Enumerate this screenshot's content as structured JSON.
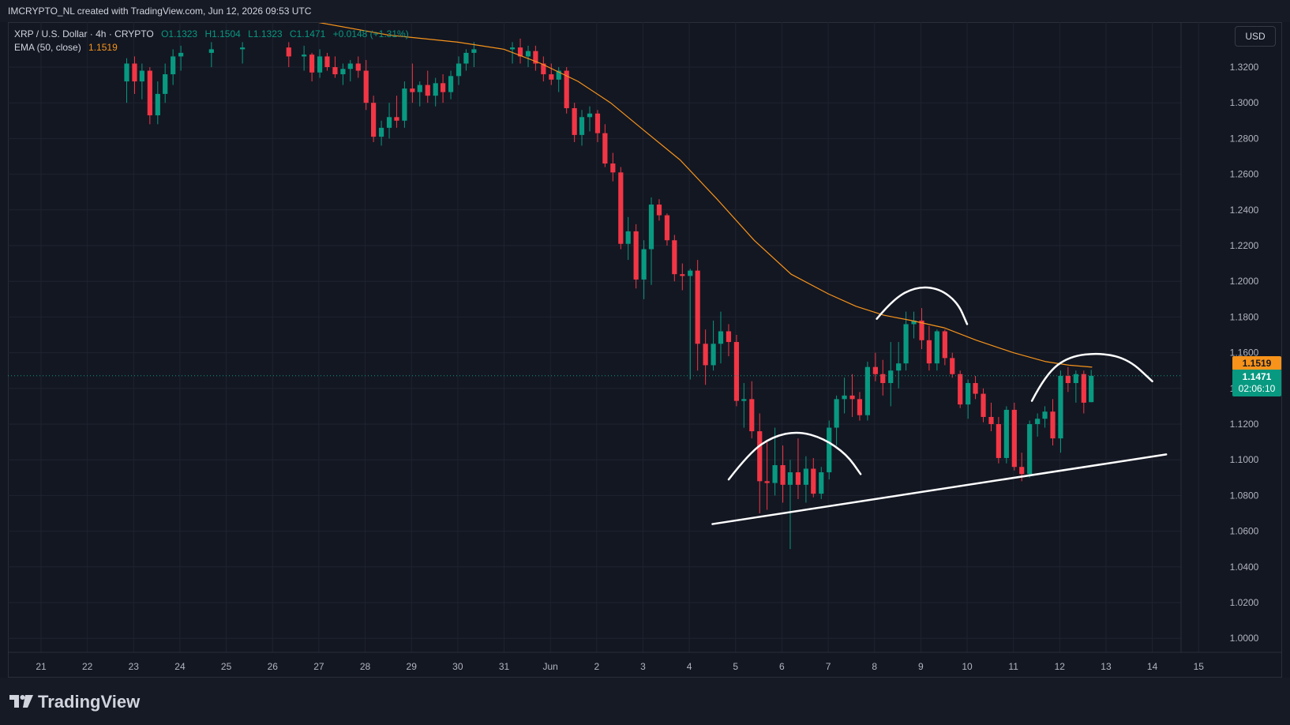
{
  "header": {
    "caption": "IMCRYPTO_NL created with TradingView.com, Jun 12, 2026 09:53 UTC"
  },
  "legend": {
    "symbol": "XRP / U.S. Dollar · 4h · CRYPTO",
    "open": "O1.1323",
    "high": "H1.1504",
    "low": "L1.1323",
    "close": "C1.1471",
    "change": "+0.0148 (+1.31%)",
    "ema_label": "EMA (50, close)",
    "ema_value": "1.1519"
  },
  "currency_button": "USD",
  "price_tags": {
    "ema": "1.1519",
    "last": "1.1471",
    "countdown": "02:06:10"
  },
  "brand": "TradingView",
  "colors": {
    "up": "#089981",
    "down": "#f23645",
    "ema": "#f7931a",
    "grid": "#1f2330",
    "bg": "#131722",
    "annotation": "#ffffff"
  },
  "chart_data": {
    "type": "candlestick",
    "title": "XRP / U.S. Dollar · 4h · CRYPTO",
    "xlabel": "",
    "ylabel": "",
    "ylim": [
      0.99,
      1.325
    ],
    "y_ticks": [
      "1.3200",
      "1.3000",
      "1.2800",
      "1.2600",
      "1.2400",
      "1.2200",
      "1.2000",
      "1.1800",
      "1.1600",
      "1.1400",
      "1.1200",
      "1.1000",
      "1.0800",
      "1.0600",
      "1.0400",
      "1.0200",
      "1.0000"
    ],
    "x_ticks": [
      "21",
      "22",
      "23",
      "24",
      "25",
      "26",
      "27",
      "28",
      "29",
      "30",
      "31",
      "Jun",
      "2",
      "3",
      "4",
      "5",
      "6",
      "7",
      "8",
      "9",
      "10",
      "11",
      "12",
      "13",
      "14",
      "15"
    ],
    "x_tick_positions_days": [
      0,
      1,
      2,
      3,
      4,
      5,
      6,
      7,
      8,
      9,
      10,
      11,
      12,
      13,
      14,
      15,
      16,
      17,
      18,
      19,
      20,
      21,
      22,
      23,
      24,
      25
    ],
    "candles": [
      {
        "t": 1.85,
        "o": 1.312,
        "h": 1.325,
        "l": 1.3,
        "c": 1.322
      },
      {
        "t": 2.02,
        "o": 1.322,
        "h": 1.326,
        "l": 1.305,
        "c": 1.312
      },
      {
        "t": 2.18,
        "o": 1.312,
        "h": 1.322,
        "l": 1.302,
        "c": 1.318
      },
      {
        "t": 2.35,
        "o": 1.318,
        "h": 1.32,
        "l": 1.288,
        "c": 1.293
      },
      {
        "t": 2.52,
        "o": 1.293,
        "h": 1.312,
        "l": 1.288,
        "c": 1.305
      },
      {
        "t": 2.68,
        "o": 1.305,
        "h": 1.322,
        "l": 1.3,
        "c": 1.316
      },
      {
        "t": 2.85,
        "o": 1.316,
        "h": 1.33,
        "l": 1.31,
        "c": 1.326
      },
      {
        "t": 3.02,
        "o": 1.326,
        "h": 1.332,
        "l": 1.318,
        "c": 1.328
      },
      {
        "t": 3.68,
        "o": 1.328,
        "h": 1.334,
        "l": 1.32,
        "c": 1.33
      },
      {
        "t": 4.35,
        "o": 1.33,
        "h": 1.334,
        "l": 1.322,
        "c": 1.331
      },
      {
        "t": 5.35,
        "o": 1.331,
        "h": 1.334,
        "l": 1.32,
        "c": 1.326
      },
      {
        "t": 5.68,
        "o": 1.326,
        "h": 1.332,
        "l": 1.318,
        "c": 1.327
      },
      {
        "t": 5.85,
        "o": 1.327,
        "h": 1.328,
        "l": 1.312,
        "c": 1.317
      },
      {
        "t": 6.02,
        "o": 1.317,
        "h": 1.33,
        "l": 1.314,
        "c": 1.326
      },
      {
        "t": 6.18,
        "o": 1.326,
        "h": 1.328,
        "l": 1.318,
        "c": 1.32
      },
      {
        "t": 6.35,
        "o": 1.32,
        "h": 1.326,
        "l": 1.314,
        "c": 1.316
      },
      {
        "t": 6.52,
        "o": 1.316,
        "h": 1.322,
        "l": 1.31,
        "c": 1.319
      },
      {
        "t": 6.68,
        "o": 1.319,
        "h": 1.324,
        "l": 1.312,
        "c": 1.322
      },
      {
        "t": 6.85,
        "o": 1.322,
        "h": 1.326,
        "l": 1.314,
        "c": 1.318
      },
      {
        "t": 7.02,
        "o": 1.318,
        "h": 1.324,
        "l": 1.296,
        "c": 1.3
      },
      {
        "t": 7.18,
        "o": 1.3,
        "h": 1.304,
        "l": 1.278,
        "c": 1.281
      },
      {
        "t": 7.35,
        "o": 1.281,
        "h": 1.29,
        "l": 1.276,
        "c": 1.286
      },
      {
        "t": 7.52,
        "o": 1.286,
        "h": 1.3,
        "l": 1.28,
        "c": 1.292
      },
      {
        "t": 7.68,
        "o": 1.292,
        "h": 1.304,
        "l": 1.286,
        "c": 1.29
      },
      {
        "t": 7.85,
        "o": 1.29,
        "h": 1.312,
        "l": 1.286,
        "c": 1.308
      },
      {
        "t": 8.02,
        "o": 1.308,
        "h": 1.322,
        "l": 1.3,
        "c": 1.306
      },
      {
        "t": 8.18,
        "o": 1.306,
        "h": 1.312,
        "l": 1.298,
        "c": 1.31
      },
      {
        "t": 8.35,
        "o": 1.31,
        "h": 1.318,
        "l": 1.3,
        "c": 1.304
      },
      {
        "t": 8.52,
        "o": 1.304,
        "h": 1.314,
        "l": 1.298,
        "c": 1.311
      },
      {
        "t": 8.68,
        "o": 1.311,
        "h": 1.316,
        "l": 1.3,
        "c": 1.306
      },
      {
        "t": 8.85,
        "o": 1.306,
        "h": 1.318,
        "l": 1.302,
        "c": 1.315
      },
      {
        "t": 9.02,
        "o": 1.315,
        "h": 1.326,
        "l": 1.31,
        "c": 1.322
      },
      {
        "t": 9.18,
        "o": 1.322,
        "h": 1.33,
        "l": 1.318,
        "c": 1.328
      },
      {
        "t": 9.35,
        "o": 1.328,
        "h": 1.334,
        "l": 1.32,
        "c": 1.33
      },
      {
        "t": 10.18,
        "o": 1.33,
        "h": 1.334,
        "l": 1.322,
        "c": 1.331
      },
      {
        "t": 10.35,
        "o": 1.331,
        "h": 1.336,
        "l": 1.322,
        "c": 1.326
      },
      {
        "t": 10.52,
        "o": 1.326,
        "h": 1.332,
        "l": 1.32,
        "c": 1.329
      },
      {
        "t": 10.68,
        "o": 1.329,
        "h": 1.332,
        "l": 1.318,
        "c": 1.322
      },
      {
        "t": 10.85,
        "o": 1.322,
        "h": 1.326,
        "l": 1.312,
        "c": 1.316
      },
      {
        "t": 11.02,
        "o": 1.316,
        "h": 1.322,
        "l": 1.31,
        "c": 1.313
      },
      {
        "t": 11.18,
        "o": 1.313,
        "h": 1.32,
        "l": 1.306,
        "c": 1.318
      },
      {
        "t": 11.35,
        "o": 1.318,
        "h": 1.32,
        "l": 1.294,
        "c": 1.297
      },
      {
        "t": 11.52,
        "o": 1.297,
        "h": 1.3,
        "l": 1.278,
        "c": 1.282
      },
      {
        "t": 11.68,
        "o": 1.282,
        "h": 1.296,
        "l": 1.276,
        "c": 1.292
      },
      {
        "t": 11.85,
        "o": 1.292,
        "h": 1.298,
        "l": 1.284,
        "c": 1.294
      },
      {
        "t": 12.02,
        "o": 1.294,
        "h": 1.296,
        "l": 1.278,
        "c": 1.283
      },
      {
        "t": 12.18,
        "o": 1.283,
        "h": 1.288,
        "l": 1.264,
        "c": 1.266
      },
      {
        "t": 12.35,
        "o": 1.266,
        "h": 1.272,
        "l": 1.256,
        "c": 1.261
      },
      {
        "t": 12.52,
        "o": 1.261,
        "h": 1.264,
        "l": 1.218,
        "c": 1.221
      },
      {
        "t": 12.68,
        "o": 1.221,
        "h": 1.236,
        "l": 1.212,
        "c": 1.228
      },
      {
        "t": 12.85,
        "o": 1.228,
        "h": 1.232,
        "l": 1.196,
        "c": 1.201
      },
      {
        "t": 13.02,
        "o": 1.201,
        "h": 1.223,
        "l": 1.19,
        "c": 1.218
      },
      {
        "t": 13.18,
        "o": 1.218,
        "h": 1.247,
        "l": 1.198,
        "c": 1.243
      },
      {
        "t": 13.35,
        "o": 1.243,
        "h": 1.246,
        "l": 1.234,
        "c": 1.237
      },
      {
        "t": 13.52,
        "o": 1.237,
        "h": 1.238,
        "l": 1.22,
        "c": 1.223
      },
      {
        "t": 13.68,
        "o": 1.223,
        "h": 1.226,
        "l": 1.2,
        "c": 1.204
      },
      {
        "t": 13.85,
        "o": 1.204,
        "h": 1.21,
        "l": 1.195,
        "c": 1.203
      },
      {
        "t": 14.02,
        "o": 1.203,
        "h": 1.207,
        "l": 1.145,
        "c": 1.206
      },
      {
        "t": 14.18,
        "o": 1.206,
        "h": 1.212,
        "l": 1.15,
        "c": 1.165
      },
      {
        "t": 14.35,
        "o": 1.165,
        "h": 1.173,
        "l": 1.142,
        "c": 1.153
      },
      {
        "t": 14.52,
        "o": 1.153,
        "h": 1.178,
        "l": 1.15,
        "c": 1.165
      },
      {
        "t": 14.68,
        "o": 1.165,
        "h": 1.183,
        "l": 1.154,
        "c": 1.172
      },
      {
        "t": 14.85,
        "o": 1.172,
        "h": 1.176,
        "l": 1.158,
        "c": 1.166
      },
      {
        "t": 15.02,
        "o": 1.166,
        "h": 1.17,
        "l": 1.13,
        "c": 1.133
      },
      {
        "t": 15.18,
        "o": 1.133,
        "h": 1.143,
        "l": 1.118,
        "c": 1.134
      },
      {
        "t": 15.35,
        "o": 1.134,
        "h": 1.144,
        "l": 1.112,
        "c": 1.116
      },
      {
        "t": 15.52,
        "o": 1.116,
        "h": 1.126,
        "l": 1.07,
        "c": 1.088
      },
      {
        "t": 15.68,
        "o": 1.088,
        "h": 1.11,
        "l": 1.072,
        "c": 1.087
      },
      {
        "t": 15.85,
        "o": 1.087,
        "h": 1.118,
        "l": 1.08,
        "c": 1.097
      },
      {
        "t": 16.02,
        "o": 1.097,
        "h": 1.108,
        "l": 1.076,
        "c": 1.086
      },
      {
        "t": 16.18,
        "o": 1.086,
        "h": 1.1,
        "l": 1.05,
        "c": 1.093
      },
      {
        "t": 16.35,
        "o": 1.093,
        "h": 1.112,
        "l": 1.078,
        "c": 1.086
      },
      {
        "t": 16.52,
        "o": 1.086,
        "h": 1.102,
        "l": 1.076,
        "c": 1.095
      },
      {
        "t": 16.68,
        "o": 1.095,
        "h": 1.101,
        "l": 1.079,
        "c": 1.081
      },
      {
        "t": 16.85,
        "o": 1.081,
        "h": 1.096,
        "l": 1.078,
        "c": 1.093
      },
      {
        "t": 17.02,
        "o": 1.093,
        "h": 1.122,
        "l": 1.089,
        "c": 1.118
      },
      {
        "t": 17.18,
        "o": 1.118,
        "h": 1.136,
        "l": 1.108,
        "c": 1.134
      },
      {
        "t": 17.35,
        "o": 1.134,
        "h": 1.146,
        "l": 1.126,
        "c": 1.136
      },
      {
        "t": 17.52,
        "o": 1.136,
        "h": 1.148,
        "l": 1.124,
        "c": 1.134
      },
      {
        "t": 17.68,
        "o": 1.134,
        "h": 1.138,
        "l": 1.122,
        "c": 1.125
      },
      {
        "t": 17.85,
        "o": 1.125,
        "h": 1.155,
        "l": 1.122,
        "c": 1.152
      },
      {
        "t": 18.02,
        "o": 1.152,
        "h": 1.16,
        "l": 1.144,
        "c": 1.148
      },
      {
        "t": 18.18,
        "o": 1.148,
        "h": 1.156,
        "l": 1.136,
        "c": 1.143
      },
      {
        "t": 18.35,
        "o": 1.143,
        "h": 1.166,
        "l": 1.13,
        "c": 1.15
      },
      {
        "t": 18.52,
        "o": 1.15,
        "h": 1.166,
        "l": 1.14,
        "c": 1.154
      },
      {
        "t": 18.68,
        "o": 1.154,
        "h": 1.183,
        "l": 1.15,
        "c": 1.176
      },
      {
        "t": 18.85,
        "o": 1.176,
        "h": 1.183,
        "l": 1.168,
        "c": 1.178
      },
      {
        "t": 19.02,
        "o": 1.178,
        "h": 1.185,
        "l": 1.162,
        "c": 1.167
      },
      {
        "t": 19.18,
        "o": 1.167,
        "h": 1.175,
        "l": 1.15,
        "c": 1.154
      },
      {
        "t": 19.35,
        "o": 1.154,
        "h": 1.173,
        "l": 1.15,
        "c": 1.172
      },
      {
        "t": 19.52,
        "o": 1.172,
        "h": 1.173,
        "l": 1.153,
        "c": 1.157
      },
      {
        "t": 19.68,
        "o": 1.157,
        "h": 1.16,
        "l": 1.146,
        "c": 1.148
      },
      {
        "t": 19.85,
        "o": 1.148,
        "h": 1.15,
        "l": 1.129,
        "c": 1.131
      },
      {
        "t": 20.02,
        "o": 1.131,
        "h": 1.145,
        "l": 1.123,
        "c": 1.143
      },
      {
        "t": 20.18,
        "o": 1.143,
        "h": 1.147,
        "l": 1.134,
        "c": 1.137
      },
      {
        "t": 20.35,
        "o": 1.137,
        "h": 1.14,
        "l": 1.121,
        "c": 1.124
      },
      {
        "t": 20.52,
        "o": 1.124,
        "h": 1.132,
        "l": 1.116,
        "c": 1.12
      },
      {
        "t": 20.68,
        "o": 1.12,
        "h": 1.124,
        "l": 1.098,
        "c": 1.101
      },
      {
        "t": 20.85,
        "o": 1.101,
        "h": 1.13,
        "l": 1.098,
        "c": 1.128
      },
      {
        "t": 21.02,
        "o": 1.128,
        "h": 1.132,
        "l": 1.094,
        "c": 1.096
      },
      {
        "t": 21.18,
        "o": 1.096,
        "h": 1.104,
        "l": 1.088,
        "c": 1.092
      },
      {
        "t": 21.35,
        "o": 1.092,
        "h": 1.122,
        "l": 1.09,
        "c": 1.12
      },
      {
        "t": 21.52,
        "o": 1.12,
        "h": 1.126,
        "l": 1.113,
        "c": 1.123
      },
      {
        "t": 21.68,
        "o": 1.123,
        "h": 1.13,
        "l": 1.118,
        "c": 1.127
      },
      {
        "t": 21.85,
        "o": 1.127,
        "h": 1.134,
        "l": 1.108,
        "c": 1.112
      },
      {
        "t": 22.02,
        "o": 1.112,
        "h": 1.15,
        "l": 1.104,
        "c": 1.147
      },
      {
        "t": 22.18,
        "o": 1.147,
        "h": 1.152,
        "l": 1.138,
        "c": 1.143
      },
      {
        "t": 22.35,
        "o": 1.143,
        "h": 1.15,
        "l": 1.132,
        "c": 1.148
      },
      {
        "t": 22.52,
        "o": 1.148,
        "h": 1.15,
        "l": 1.126,
        "c": 1.132
      },
      {
        "t": 22.68,
        "o": 1.1323,
        "h": 1.1504,
        "l": 1.1323,
        "c": 1.1471
      }
    ],
    "ema50": [
      {
        "t": 4.2,
        "v": 1.36
      },
      {
        "t": 6.0,
        "v": 1.345
      },
      {
        "t": 7.5,
        "v": 1.338
      },
      {
        "t": 9.0,
        "v": 1.334
      },
      {
        "t": 10.0,
        "v": 1.33
      },
      {
        "t": 10.8,
        "v": 1.322
      },
      {
        "t": 11.6,
        "v": 1.312
      },
      {
        "t": 12.3,
        "v": 1.3
      },
      {
        "t": 13.0,
        "v": 1.285
      },
      {
        "t": 13.8,
        "v": 1.268
      },
      {
        "t": 14.6,
        "v": 1.246
      },
      {
        "t": 15.4,
        "v": 1.223
      },
      {
        "t": 16.2,
        "v": 1.204
      },
      {
        "t": 17.0,
        "v": 1.193
      },
      {
        "t": 17.6,
        "v": 1.186
      },
      {
        "t": 18.2,
        "v": 1.181
      },
      {
        "t": 18.8,
        "v": 1.178
      },
      {
        "t": 19.5,
        "v": 1.174
      },
      {
        "t": 20.2,
        "v": 1.167
      },
      {
        "t": 21.0,
        "v": 1.16
      },
      {
        "t": 21.7,
        "v": 1.155
      },
      {
        "t": 22.2,
        "v": 1.153
      },
      {
        "t": 22.7,
        "v": 1.1519
      }
    ],
    "annotations": [
      {
        "kind": "trendline",
        "points": [
          [
            14.5,
            1.064
          ],
          [
            24.3,
            1.103
          ]
        ]
      },
      {
        "kind": "arc",
        "label": "left-shoulder",
        "points": [
          [
            14.85,
            1.089
          ],
          [
            15.3,
            1.104
          ],
          [
            15.8,
            1.113
          ],
          [
            16.35,
            1.116
          ],
          [
            16.9,
            1.112
          ],
          [
            17.4,
            1.103
          ],
          [
            17.7,
            1.092
          ]
        ]
      },
      {
        "kind": "arc",
        "label": "head",
        "points": [
          [
            18.05,
            1.179
          ],
          [
            18.4,
            1.19
          ],
          [
            18.9,
            1.197
          ],
          [
            19.4,
            1.196
          ],
          [
            19.8,
            1.188
          ],
          [
            20.0,
            1.176
          ]
        ]
      },
      {
        "kind": "arc",
        "label": "right-shoulder",
        "points": [
          [
            21.4,
            1.133
          ],
          [
            21.7,
            1.148
          ],
          [
            22.2,
            1.158
          ],
          [
            22.9,
            1.16
          ],
          [
            23.5,
            1.156
          ],
          [
            24.0,
            1.144
          ]
        ]
      }
    ]
  }
}
